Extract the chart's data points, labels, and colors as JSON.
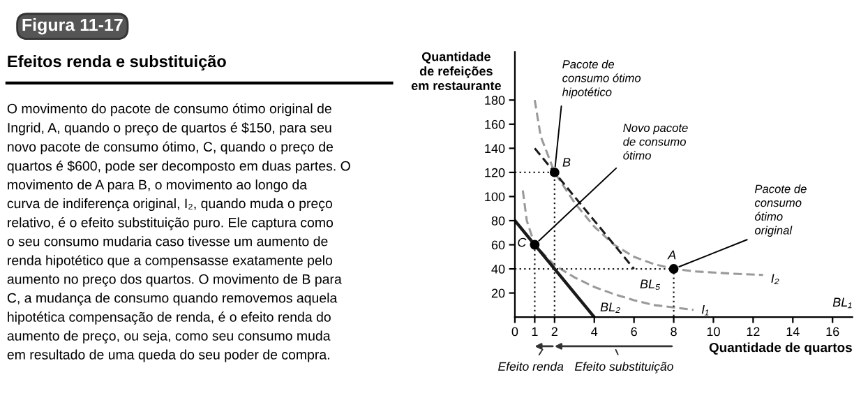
{
  "chart_data": {
    "type": "line",
    "title": "Figura 11-17",
    "subtitle": "Efeitos renda e substituição",
    "xlabel": "Quantidade de quartos",
    "ylabel": "Quantidade\nde refeições\nem restaurante",
    "xlim": [
      0,
      17
    ],
    "ylim": [
      0,
      220
    ],
    "xticks": [
      0,
      1,
      2,
      4,
      6,
      8,
      10,
      12,
      14,
      16
    ],
    "yticks": [
      20,
      40,
      60,
      80,
      100,
      120,
      140,
      160,
      180
    ],
    "grid": false,
    "legend": false,
    "series": [
      {
        "name": "I₂",
        "color": "#9a9a9a",
        "line_style": "dashed",
        "x": [
          1.0,
          1.3,
          2,
          3,
          4,
          5,
          6,
          7,
          8,
          9,
          10,
          11,
          12.5
        ],
        "values": [
          180,
          150,
          120,
          95,
          75,
          60,
          50,
          44,
          40,
          38,
          37,
          36,
          35
        ]
      },
      {
        "name": "I₁",
        "color": "#9a9a9a",
        "line_style": "dashed",
        "x": [
          0.4,
          0.6,
          1,
          2,
          3,
          4,
          5,
          6,
          7,
          8,
          9
        ],
        "values": [
          105,
          80,
          60,
          43,
          33,
          25,
          19,
          14,
          10,
          8,
          6
        ]
      },
      {
        "name": "BL₂",
        "color": "#1a1a1a",
        "line_style": "solid",
        "x": [
          0,
          4
        ],
        "values": [
          80,
          0
        ]
      },
      {
        "name": "BL₅",
        "color": "#1a1a1a",
        "line_style": "dashed",
        "x": [
          1,
          6
        ],
        "values": [
          140,
          40
        ]
      },
      {
        "type": "line",
        "color": "#1a1a1a",
        "line_style": "dotted",
        "x": [
          0,
          2,
          2
        ],
        "values": [
          120,
          120,
          0
        ]
      },
      {
        "type": "line",
        "color": "#1a1a1a",
        "line_style": "dotted",
        "x": [
          1,
          1
        ],
        "values": [
          60,
          0
        ]
      },
      {
        "type": "line",
        "color": "#1a1a1a",
        "line_style": "dotted",
        "x": [
          0,
          8,
          8
        ],
        "values": [
          40,
          40,
          0
        ]
      },
      {
        "type": "scatter",
        "color": "#000000",
        "marker": "circle",
        "x": [
          1,
          2,
          8
        ],
        "values": [
          60,
          120,
          40
        ],
        "value_labels": [
          "C",
          "B",
          "A"
        ]
      }
    ],
    "annotations": [
      "O movimento do pacote de consumo ótimo original de\nIngrid, A, quando o preço de quartos é $150, para seu\nnovo pacote de consumo ótimo, C, quando o preço de\nquartos é $600, pode ser decomposto em duas partes. O\nmovimento de A para B, o movimento ao longo da\ncurva de indiferença original, I₂, quando muda o preço\nrelativo, é o efeito substituição puro. Ele captura como\no seu consumo mudaria caso tivesse um aumento de\nrenda hipotético que a compensasse exatamente pelo\naumento no preço dos quartos. O movimento de B para\nC, a mudança de consumo quando removemos aquela\nhipotética compensação de renda, é o efeito renda do\naumento de preço, ou seja, como seu consumo muda\nem resultado de uma queda do seu poder de compra.",
      "Efeito renda",
      "Efeito substituição",
      {
        "text": "Pacote de\nconsumo ótimo\nhipotético",
        "x": 2,
        "y": 120
      },
      {
        "text": "Novo pacote\nde consumo\nótimo",
        "x": 1,
        "y": 60
      },
      {
        "text": "Pacote de\nconsumo\nótimo\noriginal",
        "x": 8,
        "y": 40
      },
      "BL₁"
    ]
  }
}
